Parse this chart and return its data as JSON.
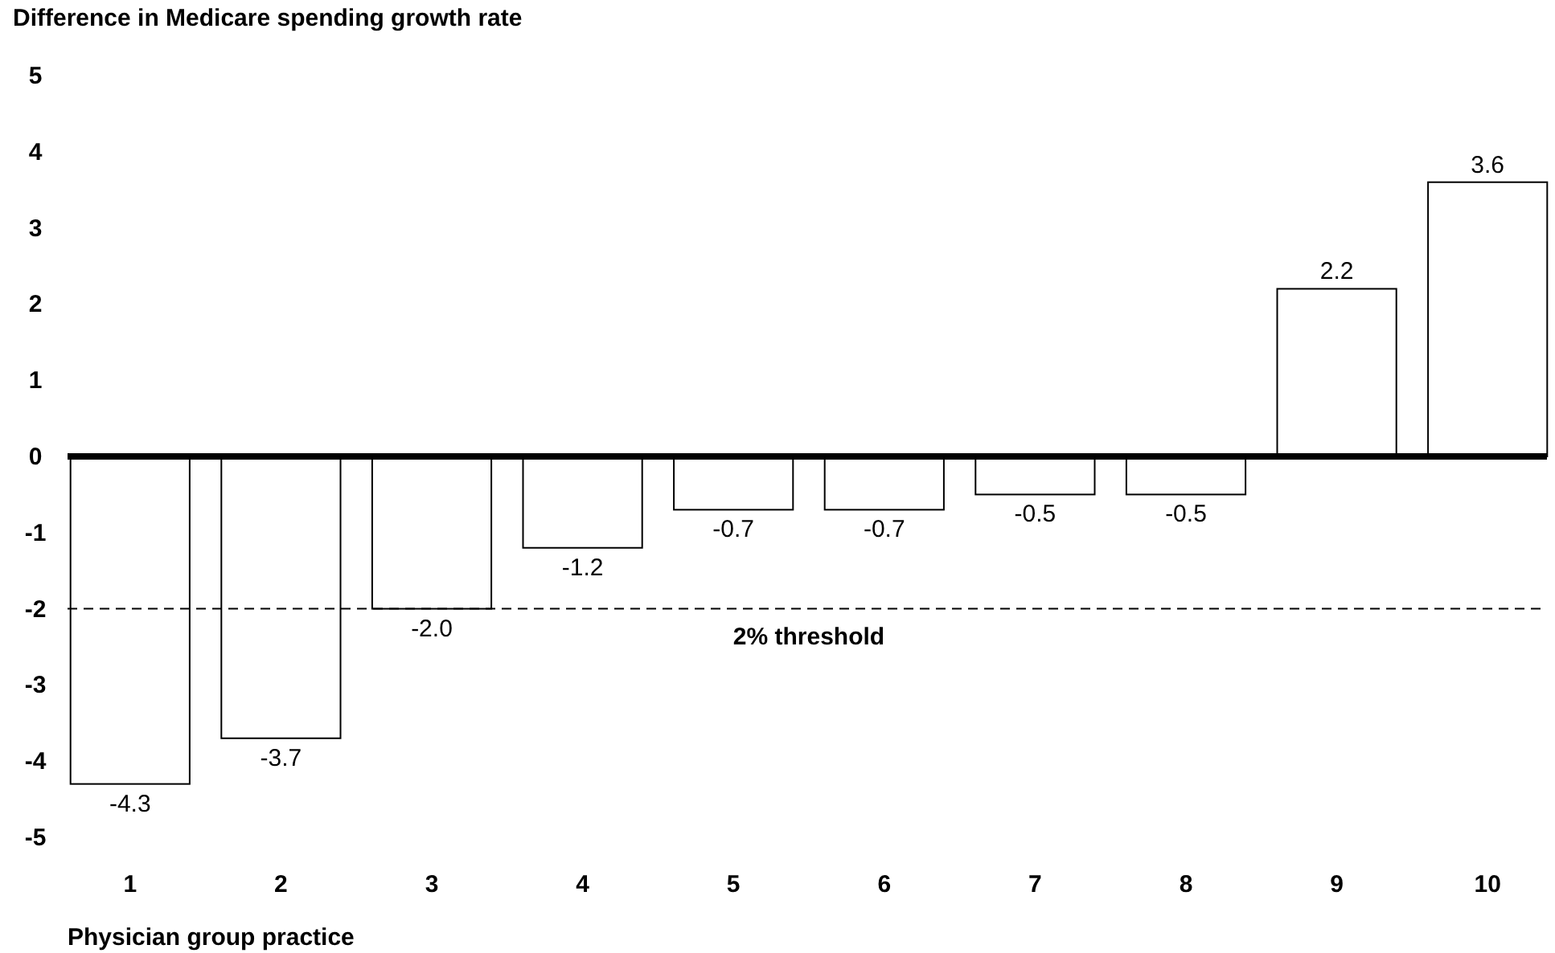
{
  "chart_data": {
    "type": "bar",
    "title": "Difference in Medicare spending growth rate",
    "xlabel": "Physician group practice",
    "categories": [
      "1",
      "2",
      "3",
      "4",
      "5",
      "6",
      "7",
      "8",
      "9",
      "10"
    ],
    "values": [
      -4.3,
      -3.7,
      -2.0,
      -1.2,
      -0.7,
      -0.7,
      -0.5,
      -0.5,
      2.2,
      3.6
    ],
    "value_labels": [
      "-4.3",
      "-3.7",
      "-2.0",
      "-1.2",
      "-0.7",
      "-0.7",
      "-0.5",
      "-0.5",
      "2.2",
      "3.6"
    ],
    "color": "#ffffff",
    "ylim": [
      -5,
      5
    ],
    "yticks": [
      -5,
      -4,
      -3,
      -2,
      -1,
      0,
      1,
      2,
      3,
      4,
      5
    ],
    "grid": false,
    "ref_lines": [
      {
        "axis": "y",
        "value": -2,
        "label": "2% threshold",
        "line_style": "dashed",
        "color": "#000000"
      }
    ]
  }
}
